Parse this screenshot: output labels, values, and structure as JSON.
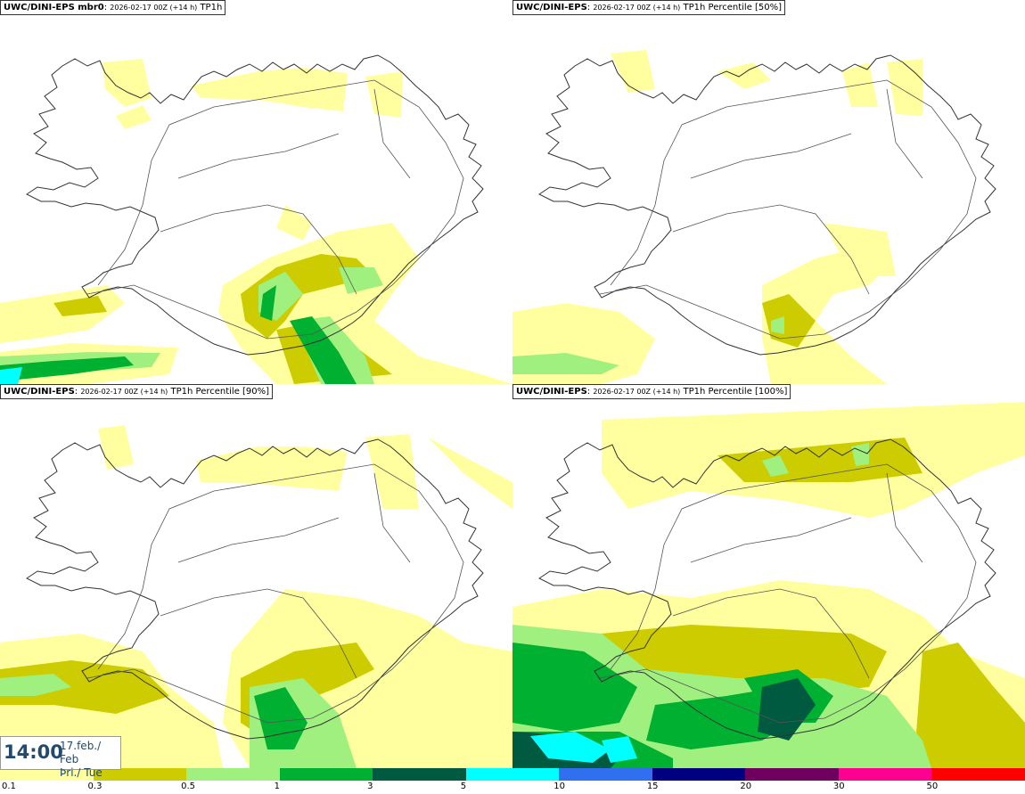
{
  "panels": [
    {
      "title_bold": "UWC/DINI-EPS mbr0",
      "title_colon": ":",
      "title_run": "2026-02-17 00Z (+14 h)",
      "title_field": "TP1h"
    },
    {
      "title_bold": "UWC/DINI-EPS",
      "title_colon": ":",
      "title_run": "2026-02-17 00Z (+14 h)",
      "title_field": "TP1h Percentile [50%]"
    },
    {
      "title_bold": "UWC/DINI-EPS",
      "title_colon": ":",
      "title_run": "2026-02-17 00Z (+14 h)",
      "title_field": "TP1h Percentile [90%]"
    },
    {
      "title_bold": "UWC/DINI-EPS",
      "title_colon": ":",
      "title_run": "2026-02-17 00Z (+14 h)",
      "title_field": "TP1h Percentile [100%]"
    }
  ],
  "valid_time": {
    "time": "14:00",
    "date_line1": "17.feb./ Feb",
    "date_line2": "Þri./ Tue"
  },
  "colorbar": {
    "colors": [
      "#ffff9f",
      "#cccc00",
      "#a0f080",
      "#00b030",
      "#005a40",
      "#00ffff",
      "#3070f0",
      "#000080",
      "#700060",
      "#ff0090",
      "#ff0000"
    ],
    "labels": [
      "0.1",
      "0.3",
      "0.5",
      "1",
      "3",
      "5",
      "10",
      "15",
      "20",
      "30",
      "50"
    ]
  },
  "precip_colors": {
    "light": "#ffff9f",
    "lowmid": "#cccc00",
    "mid": "#a0f080",
    "high": "#00b030",
    "veryhigh": "#005a40",
    "extreme": "#00ffff"
  }
}
